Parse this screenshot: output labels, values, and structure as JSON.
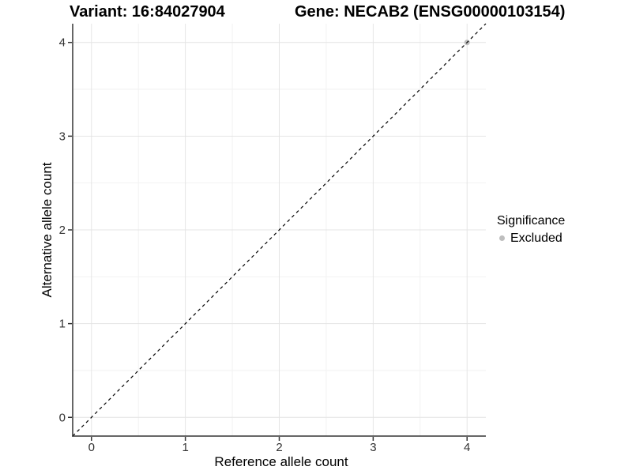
{
  "figure": {
    "title_variant": "Variant: 16:84027904",
    "title_gene": "Gene: NECAB2 (ENSG00000103154)"
  },
  "axes": {
    "x": {
      "title": "Reference allele count",
      "ticks": [
        "0",
        "1",
        "2",
        "3",
        "4"
      ]
    },
    "y": {
      "title": "Alternative allele count",
      "ticks": [
        "0",
        "1",
        "2",
        "3",
        "4"
      ]
    }
  },
  "legend": {
    "title": "Significance",
    "items": [
      {
        "label": "Excluded",
        "color": "#bebebe"
      }
    ]
  },
  "chart_data": {
    "type": "scatter",
    "title": "Variant: 16:84027904 / Gene: NECAB2 (ENSG00000103154)",
    "xlabel": "Reference allele count",
    "ylabel": "Alternative allele count",
    "xlim": [
      -0.2,
      4.2
    ],
    "ylim": [
      -0.2,
      4.2
    ],
    "x_ticks": [
      0,
      1,
      2,
      3,
      4
    ],
    "y_ticks": [
      0,
      1,
      2,
      3,
      4
    ],
    "grid": "major gridlines at integers, minor gridlines at halves, light gray on white",
    "legend_position": "right-center",
    "series": [
      {
        "name": "Excluded",
        "marker": "circle",
        "color": "#bebebe",
        "points": [
          [
            4,
            4
          ]
        ]
      }
    ],
    "annotations": [
      {
        "type": "abline",
        "label": "y = x identity line",
        "style": "dashed",
        "color": "#000000",
        "from": [
          -0.2,
          -0.2
        ],
        "to": [
          4.2,
          4.2
        ]
      }
    ],
    "colors": {
      "major_grid": "#e4e4e4",
      "minor_grid": "#f2f2f2",
      "axis_line": "#333333",
      "tick_text": "#333333"
    }
  }
}
